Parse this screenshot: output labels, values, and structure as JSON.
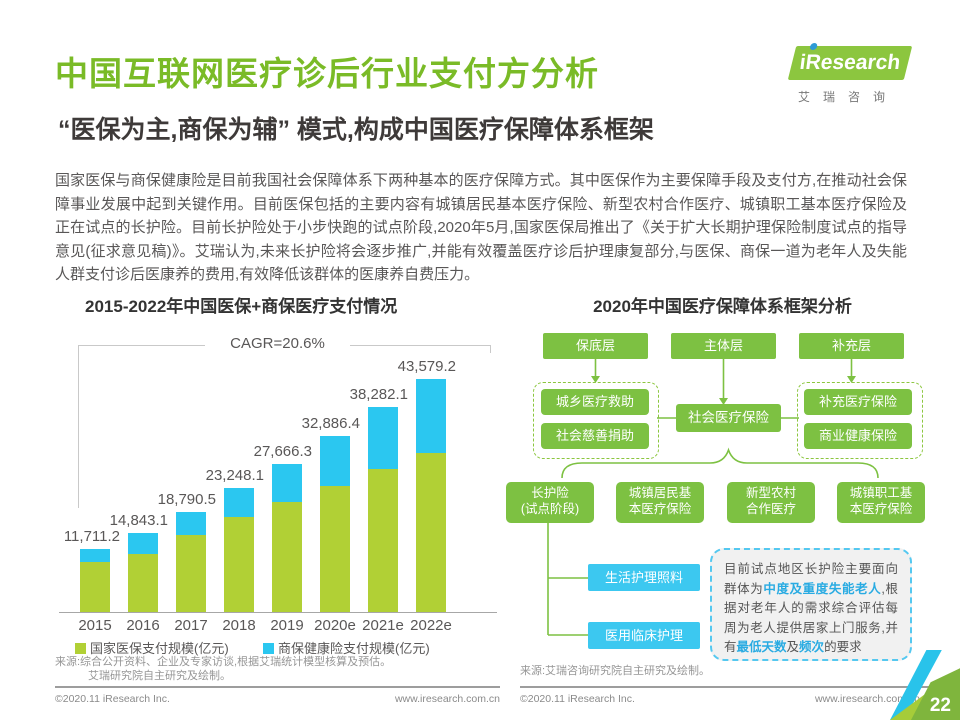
{
  "header": {
    "title": "中国互联网医疗诊后行业支付方分析",
    "subtitle": "“医保为主,商保为辅” 模式,构成中国医疗保障体系框架",
    "logo": {
      "brand": "iResearch",
      "chinese": "艾瑞咨询"
    }
  },
  "body": {
    "paragraph": "国家医保与商保健康险是目前我国社会保障体系下两种基本的医疗保障方式。其中医保作为主要保障手段及支付方,在推动社会保障事业发展中起到关键作用。目前医保包括的主要内容有城镇居民基本医疗保险、新型农村合作医疗、城镇职工基本医疗保险及正在试点的长护险。目前长护险处于小步快跑的试点阶段,2020年5月,国家医保局推出了《关于扩大长期护理保险制度试点的指导意见(征求意见稿)》。艾瑞认为,未来长护险将会逐步推广,并能有效覆盖医疗诊后护理康复部分,与医保、商保一道为老年人及失能人群支付诊后医康养的费用,有效降低该群体的医康养自费压力。"
  },
  "chart_data": {
    "type": "bar",
    "stacked": true,
    "title": "2015-2022年中国医保+商保医疗支付情况",
    "annotation": "CAGR=20.6%",
    "categories": [
      "2015",
      "2016",
      "2017",
      "2018",
      "2019",
      "2020e",
      "2021e",
      "2022e"
    ],
    "series": [
      {
        "name": "国家医保支付规模(亿元)",
        "color": "#b1d035",
        "values": [
          9300.7,
          10800.6,
          14401.0,
          17800.0,
          20600.3,
          23640.4,
          26710.0,
          29770.0
        ]
      },
      {
        "name": "商保健康险支付规模(亿元)",
        "color": "#2bc7f0",
        "values": [
          2410.5,
          4042.5,
          4389.5,
          5448.1,
          7066.0,
          9246.0,
          11572.1,
          13809.2
        ]
      }
    ],
    "totals": [
      11711.2,
      14843.1,
      18790.5,
      23248.1,
      27666.3,
      32886.4,
      38282.1,
      43579.2
    ],
    "total_labels": [
      "11,711.2",
      "14,843.1",
      "18,790.5",
      "23,248.1",
      "27,666.3",
      "32,886.4",
      "38,282.1",
      "43,579.2"
    ],
    "unit": "亿元",
    "ylim": [
      0,
      45000
    ],
    "grid": false,
    "legend_position": "bottom",
    "source_line1": "来源:综合公开资料、企业及专家访谈,根据艾瑞统计模型核算及预估。",
    "source_line2": "艾瑞研究院自主研究及绘制。"
  },
  "framework": {
    "title": "2020年中国医疗保障体系框架分析",
    "layers": [
      "保底层",
      "主体层",
      "补充层"
    ],
    "left_group": [
      "城乡医疗救助",
      "社会慈善捐助"
    ],
    "center": "社会医疗保险",
    "right_group": [
      "补充医疗保险",
      "商业健康保险"
    ],
    "tier_boxes": [
      {
        "lines": [
          "长护险",
          "(试点阶段)"
        ]
      },
      {
        "lines": [
          "城镇居民基",
          "本医疗保险"
        ]
      },
      {
        "lines": [
          "新型农村",
          "合作医疗"
        ]
      },
      {
        "lines": [
          "城镇职工基",
          "本医疗保险"
        ]
      }
    ],
    "care_boxes": [
      "生活护理照料",
      "医用临床护理"
    ],
    "note": {
      "segments": [
        {
          "text": "目前试点地区长护险主要面向群体为",
          "hl": false
        },
        {
          "text": "中度及重度失能老人",
          "hl": true
        },
        {
          "text": ",根据对老年人的需求综合评估每周为老人提供居家上门服务,并有",
          "hl": false
        },
        {
          "text": "最低天数",
          "hl": true
        },
        {
          "text": "及",
          "hl": false
        },
        {
          "text": "频次",
          "hl": true
        },
        {
          "text": "的要求",
          "hl": false
        }
      ]
    },
    "source": "来源:艾瑞咨询研究院自主研究及绘制。"
  },
  "footer": {
    "copyright": "©2020.11 iResearch Inc.",
    "url": "www.iresearch.com.cn",
    "page_number": "22"
  },
  "colors": {
    "title_green": "#7abb27",
    "bar_green": "#b1d035",
    "bar_blue": "#2bc7f0",
    "box_green": "#7dc142",
    "care_blue": "#3cc8f0",
    "highlight_blue": "#29abe2"
  }
}
